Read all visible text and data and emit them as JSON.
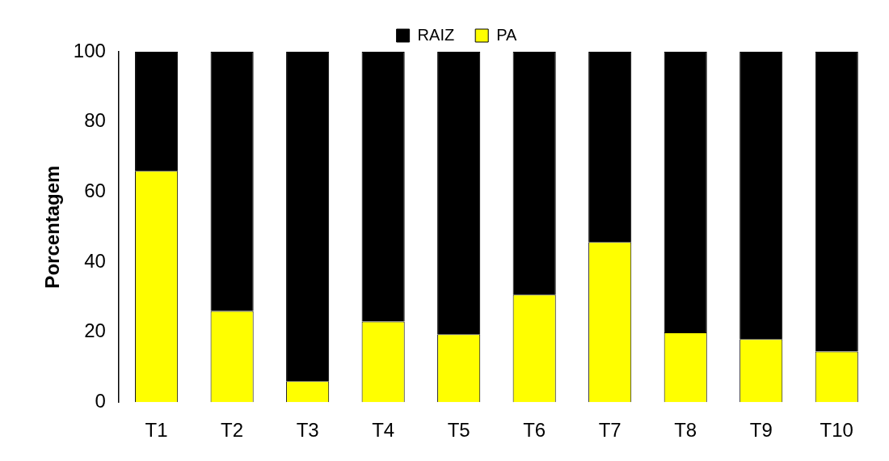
{
  "chart_data": {
    "type": "bar",
    "stacked": true,
    "ylabel": "Porcentagem",
    "categories": [
      "T1",
      "T2",
      "T3",
      "T4",
      "T5",
      "T6",
      "T7",
      "T8",
      "T9",
      "T10"
    ],
    "series": [
      {
        "name": "PA",
        "color": "#ffff00",
        "values": [
          66,
          26,
          6,
          23,
          19.4,
          30.7,
          45.7,
          19.9,
          18,
          14.5
        ]
      },
      {
        "name": "RAIZ",
        "color": "#000000",
        "values": [
          34,
          74,
          94,
          77,
          80.6,
          69.3,
          54.3,
          80.1,
          82,
          85.5
        ]
      }
    ],
    "ylim": [
      0,
      100
    ],
    "yticks": [
      0,
      20,
      40,
      60,
      80,
      100
    ],
    "grid": false,
    "legend": "top"
  }
}
